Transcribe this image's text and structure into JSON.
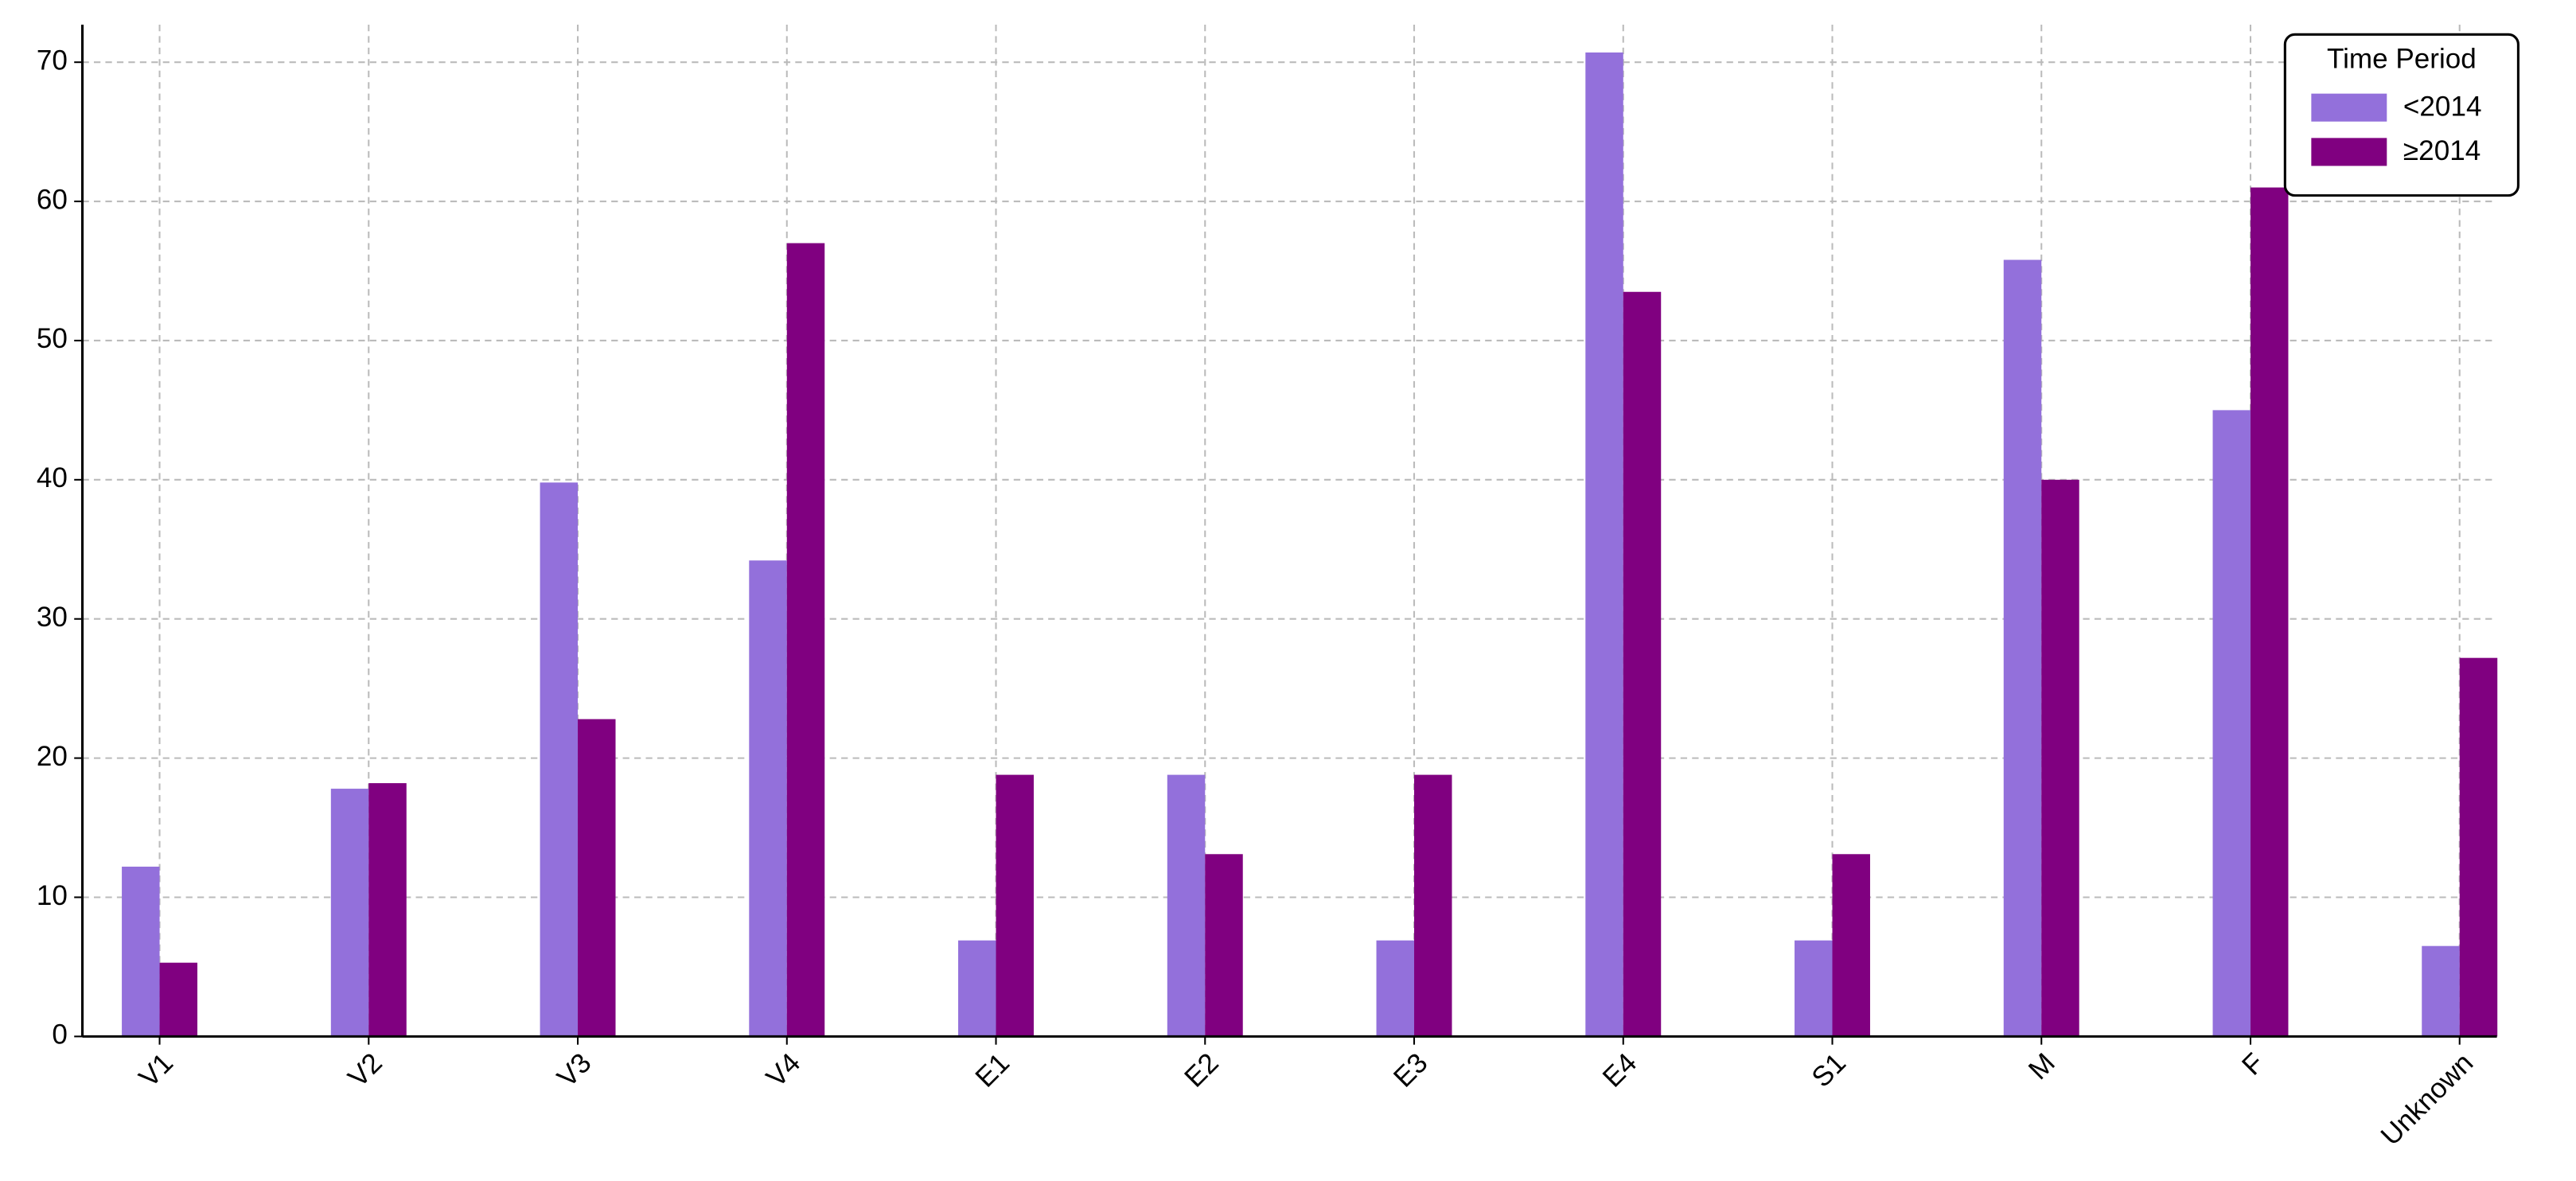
{
  "chart_data": {
    "type": "bar",
    "categories": [
      "V1",
      "V2",
      "V3",
      "V4",
      "E1",
      "E2",
      "E3",
      "E4",
      "S1",
      "M",
      "F",
      "Unknown"
    ],
    "series": [
      {
        "name": "<2014",
        "color": "#9370db",
        "values": [
          12.2,
          17.8,
          39.8,
          34.2,
          6.9,
          18.8,
          6.9,
          70.7,
          6.9,
          55.8,
          45.0,
          6.5
        ]
      },
      {
        "name": "≥2014",
        "color": "#800080",
        "values": [
          5.3,
          18.2,
          22.8,
          57.0,
          18.8,
          13.1,
          18.8,
          53.5,
          13.1,
          40.0,
          61.0,
          27.2
        ]
      }
    ],
    "ylim": [
      0,
      72.7
    ],
    "yticks": [
      0,
      10,
      20,
      30,
      40,
      50,
      60,
      70
    ],
    "grid": true,
    "legend_title": "Time Period",
    "legend": "upper right"
  }
}
